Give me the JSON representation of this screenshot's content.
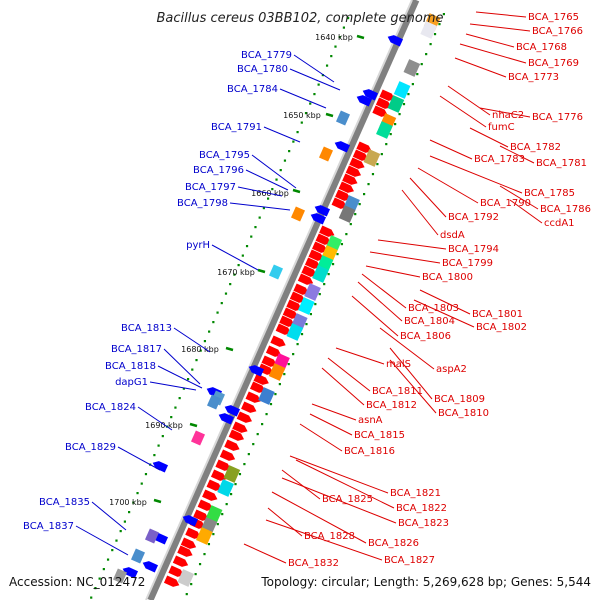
{
  "title": "Bacillus cereus 03BB102, complete genome",
  "footer": {
    "accession": "Accession: NC_012472",
    "summary": "Topology: circular; Length: 5,269,628 bp; Genes: 5,544"
  },
  "colors": {
    "forward_label": "#dd0000",
    "reverse_label": "#0000cc",
    "forward_gene": "#ff0000",
    "reverse_gene": "#0000ff",
    "backbone": "#808080",
    "tick": "#008800"
  },
  "kbp_marks": [
    "1640 kbp",
    "1650 kbp",
    "1660 kbp",
    "1670 kbp",
    "1680 kbp",
    "1690 kbp",
    "1700 kbp"
  ],
  "forward_labels": [
    "BCA_1765",
    "BCA_1766",
    "BCA_1768",
    "BCA_1769",
    "BCA_1773",
    "nhaC2",
    "BCA_1776",
    "fumC",
    "BCA_1782",
    "BCA_1783",
    "BCA_1781",
    "BCA_1785",
    "BCA_1790",
    "BCA_1786",
    "BCA_1792",
    "ccdA1",
    "dsdA",
    "BCA_1794",
    "BCA_1799",
    "BCA_1800",
    "BCA_1803",
    "BCA_1801",
    "BCA_1804",
    "BCA_1802",
    "BCA_1806",
    "malS",
    "aspA2",
    "BCA_1811",
    "BCA_1809",
    "BCA_1812",
    "BCA_1810",
    "asnA",
    "BCA_1815",
    "BCA_1816",
    "BCA_1821",
    "BCA_1825",
    "BCA_1822",
    "BCA_1823",
    "BCA_1828",
    "BCA_1826",
    "BCA_1827",
    "BCA_1832"
  ],
  "reverse_labels": [
    "BCA_1779",
    "BCA_1780",
    "BCA_1784",
    "BCA_1791",
    "BCA_1795",
    "BCA_1796",
    "BCA_1797",
    "BCA_1798",
    "pyrH",
    "BCA_1813",
    "BCA_1817",
    "BCA_1818",
    "dapG1",
    "BCA_1824",
    "BCA_1829",
    "BCA_1835",
    "BCA_1837"
  ]
}
